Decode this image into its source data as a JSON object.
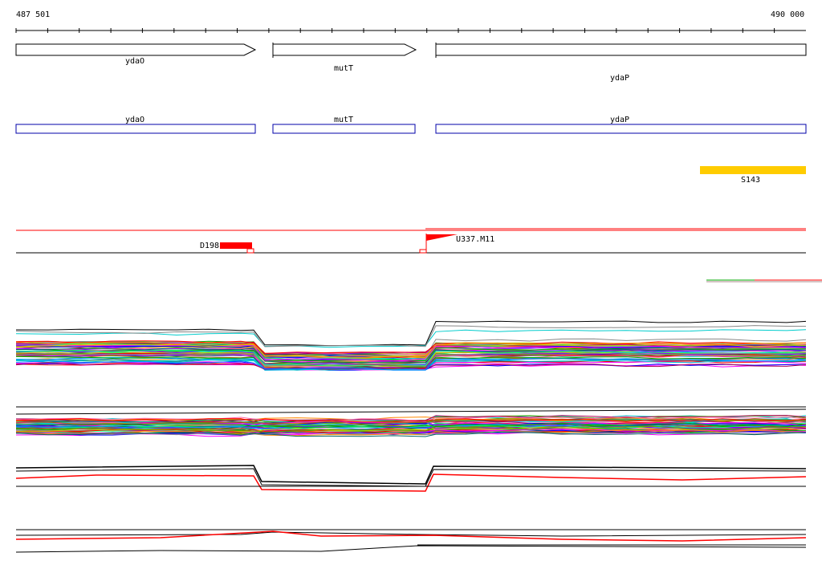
{
  "ruler": {
    "start_label": "487 501",
    "end_label": "490 000",
    "start_bp": 487501,
    "end_bp": 490000
  },
  "genes": [
    {
      "name": "ydaO"
    },
    {
      "name": "mutT"
    },
    {
      "name": "ydaP"
    }
  ],
  "cds": [
    {
      "name": "ydaO"
    },
    {
      "name": "mutT"
    },
    {
      "name": "ydaP"
    }
  ],
  "features": {
    "s143": {
      "label": "S143",
      "color": "#ffcc00"
    },
    "d198": {
      "label": "D198",
      "color": "#ff0000"
    },
    "u337": {
      "label": "U337.M11",
      "color": "#ff0000"
    }
  },
  "colors": {
    "gene_arrow_border": "#000000",
    "cds_border": "#0000aa",
    "track_line": "#000000",
    "accent_red": "#ff0000"
  },
  "expression_palette": [
    "#ff0000",
    "#00aa00",
    "#0000ff",
    "#ff00ff",
    "#00cccc",
    "#cccc00",
    "#ff8800",
    "#8800ff",
    "#00ff88",
    "#888888",
    "#aa0055",
    "#0088ff",
    "#55aa00",
    "#ff66aa",
    "#006666",
    "#aa6600"
  ]
}
